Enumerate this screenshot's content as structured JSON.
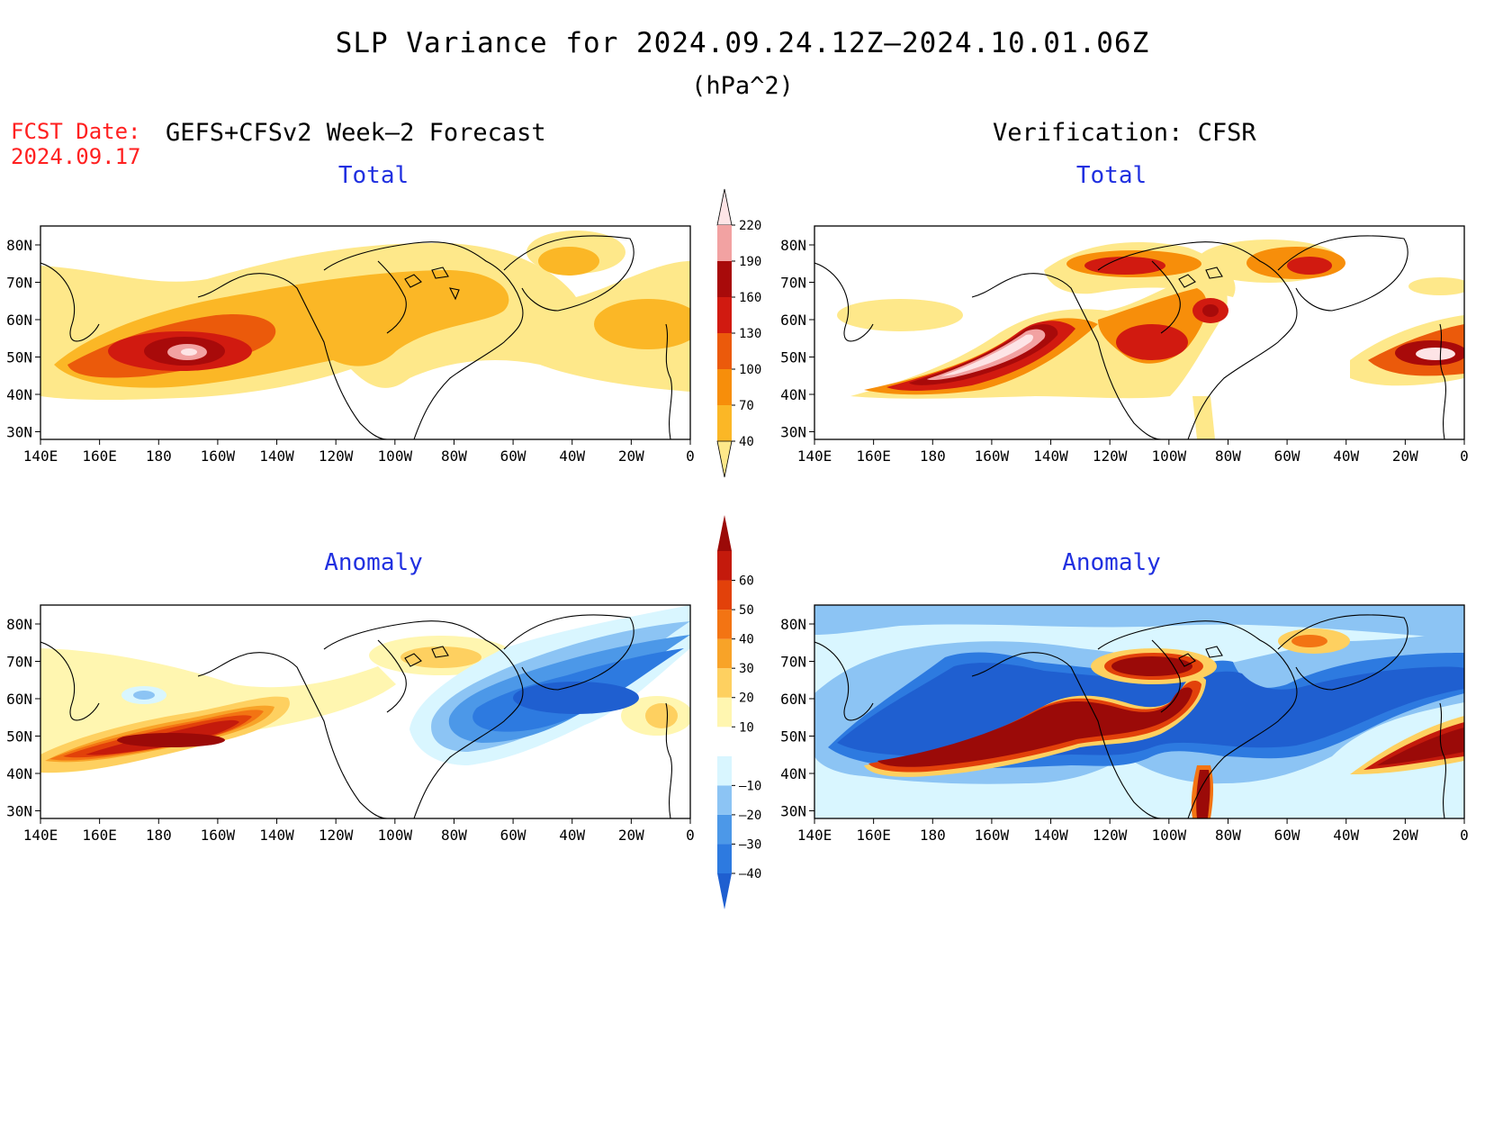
{
  "header": {
    "title": "SLP Variance for 2024.09.24.12Z—2024.10.01.06Z",
    "units": "(hPa^2)",
    "fcst_date_label": "FCST Date:",
    "fcst_date_value": "2024.09.17",
    "left_heading": "GEFS+CFSv2 Week—2 Forecast",
    "right_heading": "Verification: CFSR"
  },
  "panels": [
    {
      "title": "Total"
    },
    {
      "title": "Total"
    },
    {
      "title": "Anomaly"
    },
    {
      "title": "Anomaly"
    }
  ],
  "axes": {
    "lat_labels": [
      "80N",
      "70N",
      "60N",
      "50N",
      "40N",
      "30N"
    ],
    "lon_labels": [
      "140E",
      "160E",
      "180",
      "160W",
      "140W",
      "120W",
      "100W",
      "80W",
      "60W",
      "40W",
      "20W",
      "0"
    ]
  },
  "colorbars": {
    "total": {
      "labels": [
        "40",
        "70",
        "100",
        "130",
        "160",
        "190",
        "220"
      ],
      "colors": [
        "#fee88a",
        "#fbb726",
        "#f78e0a",
        "#eb5a0b",
        "#d11a10",
        "#a80a0a",
        "#f2a2a2",
        "#fde4e6"
      ]
    },
    "anomaly": {
      "labels": [
        "—40",
        "—30",
        "—20",
        "—10",
        "10",
        "20",
        "30",
        "40",
        "50",
        "60"
      ],
      "colors": [
        "#1f5fd0",
        "#2d7ae0",
        "#4c98e8",
        "#8cc4f4",
        "#d9f6ff",
        "#ffffff",
        "#fff6b0",
        "#fed060",
        "#f8a328",
        "#f37413",
        "#e2410a",
        "#c41a0c",
        "#9b0a08"
      ]
    }
  }
}
